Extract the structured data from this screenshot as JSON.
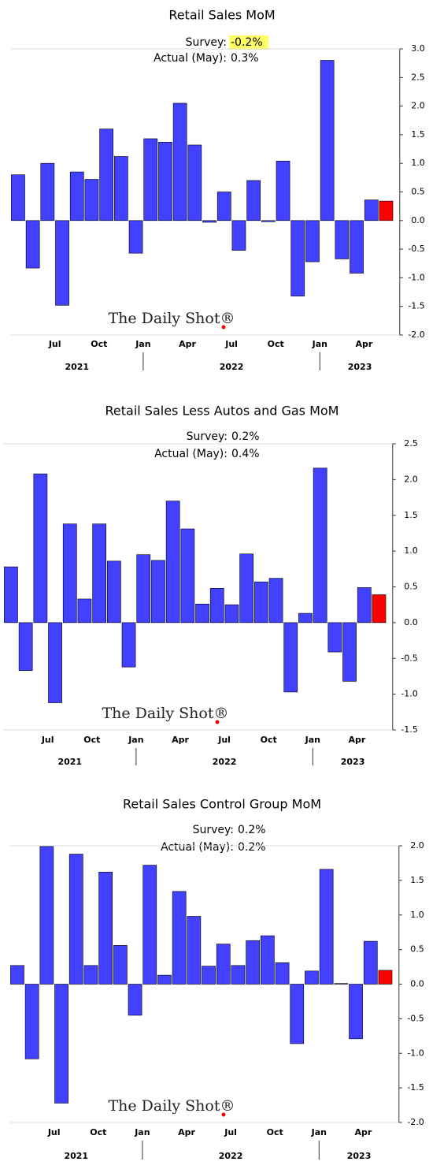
{
  "chart_data": [
    {
      "type": "bar",
      "title": "Retail Sales MoM",
      "survey_label": "Survey:",
      "survey": "-0.2%",
      "actual_label": "Actual (May):",
      "actual": "0.3%",
      "watermark": "The Daily Shot®",
      "categories": [
        null,
        null,
        null,
        "Jul",
        null,
        null,
        "Oct",
        null,
        null,
        "Jan",
        null,
        null,
        "Apr",
        null,
        null,
        "Jul",
        null,
        null,
        "Oct",
        null,
        null,
        "Jan",
        null,
        null,
        "Apr",
        null
      ],
      "year_labels": [
        "2021",
        "2022",
        "2023"
      ],
      "values": [
        0.8,
        -0.83,
        1.0,
        -1.48,
        0.85,
        0.72,
        1.6,
        1.12,
        -0.57,
        1.43,
        1.37,
        2.05,
        1.32,
        -0.03,
        0.5,
        -0.52,
        0.7,
        -0.02,
        1.04,
        -1.32,
        -0.72,
        2.8,
        -0.67,
        -0.92,
        0.36,
        0.34
      ],
      "colors": [
        "#4141ff",
        "#4141ff",
        "#4141ff",
        "#4141ff",
        "#4141ff",
        "#4141ff",
        "#4141ff",
        "#4141ff",
        "#4141ff",
        "#4141ff",
        "#4141ff",
        "#4141ff",
        "#4141ff",
        "#4141ff",
        "#4141ff",
        "#4141ff",
        "#4141ff",
        "#4141ff",
        "#4141ff",
        "#4141ff",
        "#4141ff",
        "#4141ff",
        "#4141ff",
        "#4141ff",
        "#4141ff",
        "#ff0000"
      ],
      "ylim": [
        -2,
        3
      ],
      "yticks": [
        {
          "value": 3,
          "label": "3.0"
        },
        {
          "value": 2.5,
          "label": "2.5"
        },
        {
          "value": 2,
          "label": "2.0"
        },
        {
          "value": 1.5,
          "label": "1.5"
        },
        {
          "value": 1,
          "label": "1.0"
        },
        {
          "value": 0.5,
          "label": "0.5"
        },
        {
          "value": 0,
          "label": "0.0"
        },
        {
          "value": -0.5,
          "label": "-0.5"
        },
        {
          "value": -1,
          "label": "-1.0"
        },
        {
          "value": -1.5,
          "label": "-1.5"
        },
        {
          "value": -2,
          "label": "-2.0"
        }
      ],
      "grid": false
    },
    {
      "type": "bar",
      "title": "Retail Sales Less Autos and Gas MoM",
      "survey_label": "Survey:",
      "survey": "0.2%",
      "actual_label": "Actual (May):",
      "actual": "0.4%",
      "watermark": "The Daily Shot®",
      "categories": [
        null,
        null,
        null,
        "Jul",
        null,
        null,
        "Oct",
        null,
        null,
        "Jan",
        null,
        null,
        "Apr",
        null,
        null,
        "Jul",
        null,
        null,
        "Oct",
        null,
        null,
        "Jan",
        null,
        null,
        "Apr",
        null
      ],
      "year_labels": [
        "2021",
        "2022",
        "2023"
      ],
      "values": [
        0.78,
        -0.67,
        2.08,
        -1.12,
        1.38,
        0.33,
        1.38,
        0.86,
        -0.62,
        0.95,
        0.87,
        1.7,
        1.31,
        0.26,
        0.48,
        0.25,
        0.96,
        0.57,
        0.62,
        -0.97,
        0.13,
        2.16,
        -0.41,
        -0.82,
        0.49,
        0.39
      ],
      "colors": [
        "#4141ff",
        "#4141ff",
        "#4141ff",
        "#4141ff",
        "#4141ff",
        "#4141ff",
        "#4141ff",
        "#4141ff",
        "#4141ff",
        "#4141ff",
        "#4141ff",
        "#4141ff",
        "#4141ff",
        "#4141ff",
        "#4141ff",
        "#4141ff",
        "#4141ff",
        "#4141ff",
        "#4141ff",
        "#4141ff",
        "#4141ff",
        "#4141ff",
        "#4141ff",
        "#4141ff",
        "#4141ff",
        "#ff0000"
      ],
      "ylim": [
        -1.5,
        2.5
      ],
      "yticks": [
        {
          "value": 2.5,
          "label": "2.5"
        },
        {
          "value": 2,
          "label": "2.0"
        },
        {
          "value": 1.5,
          "label": "1.5"
        },
        {
          "value": 1,
          "label": "1.0"
        },
        {
          "value": 0.5,
          "label": "0.5"
        },
        {
          "value": 0,
          "label": "0.0"
        },
        {
          "value": -0.5,
          "label": "-0.5"
        },
        {
          "value": -1,
          "label": "-1.0"
        },
        {
          "value": -1.5,
          "label": "-1.5"
        }
      ],
      "grid": false
    },
    {
      "type": "bar",
      "title": "Retail Sales Control Group MoM",
      "survey_label": "Survey:",
      "survey": "0.2%",
      "actual_label": "Actual (May):",
      "actual": "0.2%",
      "watermark": "The Daily Shot®",
      "categories": [
        null,
        null,
        null,
        "Jul",
        null,
        null,
        "Oct",
        null,
        null,
        "Jan",
        null,
        null,
        "Apr",
        null,
        null,
        "Jul",
        null,
        null,
        "Oct",
        null,
        null,
        "Jan",
        null,
        null,
        "Apr",
        null
      ],
      "year_labels": [
        "2021",
        "2022",
        "2023"
      ],
      "values": [
        0.27,
        -1.08,
        1.99,
        -1.72,
        1.88,
        0.27,
        1.62,
        0.56,
        -0.45,
        1.72,
        0.13,
        1.34,
        0.98,
        0.26,
        0.58,
        0.27,
        0.63,
        0.7,
        0.31,
        -0.86,
        0.19,
        1.66,
        0.01,
        -0.79,
        0.62,
        0.2
      ],
      "colors": [
        "#4141ff",
        "#4141ff",
        "#4141ff",
        "#4141ff",
        "#4141ff",
        "#4141ff",
        "#4141ff",
        "#4141ff",
        "#4141ff",
        "#4141ff",
        "#4141ff",
        "#4141ff",
        "#4141ff",
        "#4141ff",
        "#4141ff",
        "#4141ff",
        "#4141ff",
        "#4141ff",
        "#4141ff",
        "#4141ff",
        "#4141ff",
        "#4141ff",
        "#4141ff",
        "#4141ff",
        "#4141ff",
        "#ff0000"
      ],
      "ylim": [
        -2,
        2
      ],
      "yticks": [
        {
          "value": 2,
          "label": "2.0"
        },
        {
          "value": 1.5,
          "label": "1.5"
        },
        {
          "value": 1,
          "label": "1.0"
        },
        {
          "value": 0.5,
          "label": "0.5"
        },
        {
          "value": 0,
          "label": "0.0"
        },
        {
          "value": -0.5,
          "label": "-0.5"
        },
        {
          "value": -1,
          "label": "-1.0"
        },
        {
          "value": -1.5,
          "label": "-1.5"
        },
        {
          "value": -2,
          "label": "-2.0"
        }
      ],
      "grid": false
    }
  ]
}
